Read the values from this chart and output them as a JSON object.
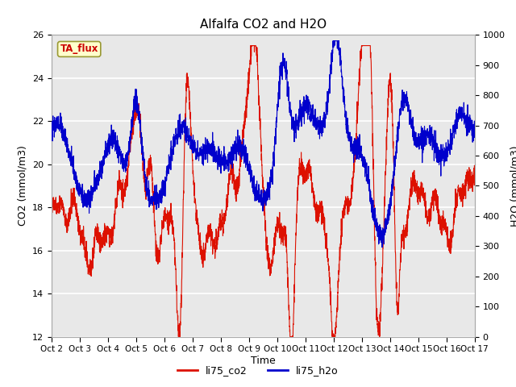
{
  "title": "Alfalfa CO2 and H2O",
  "xlabel": "Time",
  "ylabel_left": "CO2 (mmol/m3)",
  "ylabel_right": "H2O (mmol/m3)",
  "annotation": "TA_flux",
  "annotation_color": "#cc0000",
  "annotation_bg": "#ffffcc",
  "annotation_border": "#999933",
  "xlim": [
    0,
    15
  ],
  "ylim_left": [
    12,
    26
  ],
  "ylim_right": [
    0,
    1000
  ],
  "yticks_left": [
    12,
    14,
    16,
    18,
    20,
    22,
    24,
    26
  ],
  "yticks_right": [
    0,
    100,
    200,
    300,
    400,
    500,
    600,
    700,
    800,
    900,
    1000
  ],
  "xtick_labels": [
    "Oct 2",
    "Oct 3",
    "Oct 4",
    "Oct 5",
    "Oct 6",
    "Oct 7",
    "Oct 8",
    "Oct 9",
    "Oct 10",
    "Oct 11",
    "Oct 12",
    "Oct 13",
    "Oct 14",
    "Oct 15",
    "Oct 16",
    "Oct 17"
  ],
  "plot_bg_color": "#e8e8e8",
  "grid_color": "#ffffff",
  "line_co2_color": "#dd1100",
  "line_h2o_color": "#0000cc",
  "legend_co2": "li75_co2",
  "legend_h2o": "li75_h2o",
  "figsize": [
    6.4,
    4.8
  ],
  "dpi": 100
}
